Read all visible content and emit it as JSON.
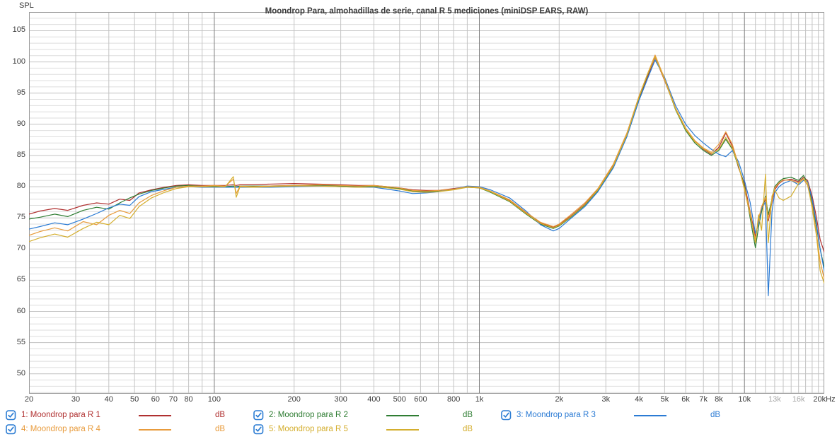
{
  "chart_data": {
    "type": "line",
    "title": "Moondrop Para, almohadillas de serie, canal R 5 mediciones (miniDSP EARS, RAW)",
    "ylabel": "SPL",
    "xlabel": "",
    "x_scale": "log",
    "xlim": [
      20,
      20000
    ],
    "ylim": [
      46.8,
      108
    ],
    "grid": true,
    "legend_position": "bottom",
    "y_ticks": [
      105,
      100,
      95,
      90,
      85,
      80,
      75,
      70,
      65,
      60,
      55,
      50
    ],
    "x_ticks": [
      {
        "label": "20",
        "f": 20,
        "muted": false
      },
      {
        "label": "30",
        "f": 30,
        "muted": false
      },
      {
        "label": "40",
        "f": 40,
        "muted": false
      },
      {
        "label": "50",
        "f": 50,
        "muted": false
      },
      {
        "label": "60",
        "f": 60,
        "muted": false
      },
      {
        "label": "70",
        "f": 70,
        "muted": false
      },
      {
        "label": "80",
        "f": 80,
        "muted": false
      },
      {
        "label": "100",
        "f": 100,
        "muted": false
      },
      {
        "label": "200",
        "f": 200,
        "muted": false
      },
      {
        "label": "300",
        "f": 300,
        "muted": false
      },
      {
        "label": "400",
        "f": 400,
        "muted": false
      },
      {
        "label": "500",
        "f": 500,
        "muted": false
      },
      {
        "label": "600",
        "f": 600,
        "muted": false
      },
      {
        "label": "800",
        "f": 800,
        "muted": false
      },
      {
        "label": "1k",
        "f": 1000,
        "muted": false
      },
      {
        "label": "2k",
        "f": 2000,
        "muted": false
      },
      {
        "label": "3k",
        "f": 3000,
        "muted": false
      },
      {
        "label": "4k",
        "f": 4000,
        "muted": false
      },
      {
        "label": "5k",
        "f": 5000,
        "muted": false
      },
      {
        "label": "6k",
        "f": 6000,
        "muted": false
      },
      {
        "label": "7k",
        "f": 7000,
        "muted": false
      },
      {
        "label": "8k",
        "f": 8000,
        "muted": false
      },
      {
        "label": "10k",
        "f": 10000,
        "muted": false
      },
      {
        "label": "13k",
        "f": 13000,
        "muted": true
      },
      {
        "label": "16k",
        "f": 16000,
        "muted": true
      },
      {
        "label": "20kHz",
        "f": 20000,
        "muted": false
      }
    ],
    "frequencies": [
      20,
      22,
      25,
      28,
      32,
      36,
      40,
      44,
      48,
      52,
      58,
      65,
      72,
      80,
      90,
      100,
      110,
      118,
      121,
      125,
      140,
      160,
      200,
      250,
      300,
      350,
      400,
      450,
      500,
      560,
      630,
      700,
      800,
      900,
      1000,
      1100,
      1300,
      1500,
      1700,
      1900,
      2000,
      2200,
      2500,
      2800,
      3200,
      3600,
      4000,
      4300,
      4600,
      5000,
      5500,
      6000,
      6500,
      7000,
      7500,
      8000,
      8500,
      9000,
      9500,
      10000,
      10500,
      11000,
      11300,
      11600,
      12000,
      12300,
      12700,
      13000,
      13500,
      14000,
      15000,
      16000,
      16700,
      17300,
      18000,
      18700,
      19300,
      20000
    ],
    "series": [
      {
        "name": "1: Moondrop para R 1",
        "color": "#b03030",
        "values": [
          75.6,
          76.1,
          76.5,
          76.2,
          77.0,
          77.4,
          77.2,
          78.0,
          77.8,
          79.0,
          79.5,
          79.9,
          80.2,
          80.3,
          80.2,
          80.2,
          80.2,
          80.3,
          80.2,
          80.3,
          80.3,
          80.4,
          80.5,
          80.4,
          80.3,
          80.2,
          80.2,
          80.0,
          79.8,
          79.5,
          79.4,
          79.4,
          79.7,
          80.0,
          79.8,
          79.2,
          77.8,
          75.8,
          74.2,
          73.5,
          73.9,
          75.2,
          77.2,
          79.6,
          83.5,
          88.5,
          94.0,
          97.5,
          100.7,
          97.0,
          92.5,
          89.3,
          87.3,
          86.0,
          85.2,
          86.3,
          88.6,
          86.5,
          83.0,
          80.5,
          76.0,
          72.0,
          74.5,
          76.5,
          78.0,
          74.5,
          77.5,
          79.5,
          80.5,
          81.0,
          81.2,
          80.8,
          81.5,
          81.0,
          78.5,
          75.0,
          71.5,
          69.5
        ]
      },
      {
        "name": "2: Moondrop para R 2",
        "color": "#2f7d33",
        "values": [
          74.8,
          75.1,
          75.6,
          75.2,
          76.2,
          76.7,
          76.4,
          77.4,
          78.2,
          78.8,
          79.4,
          79.8,
          80.1,
          80.2,
          80.1,
          80.1,
          80.0,
          80.1,
          80.0,
          80.1,
          80.1,
          80.1,
          80.2,
          80.2,
          80.1,
          80.0,
          80.1,
          79.9,
          79.7,
          79.3,
          79.2,
          79.3,
          79.6,
          79.9,
          79.8,
          79.1,
          77.6,
          75.6,
          74.0,
          73.3,
          73.7,
          75.0,
          77.0,
          79.4,
          83.2,
          88.2,
          94.2,
          97.8,
          100.9,
          97.2,
          92.3,
          89.0,
          87.0,
          85.8,
          85.0,
          85.8,
          87.6,
          86.0,
          83.2,
          80.2,
          75.0,
          70.2,
          73.5,
          76.0,
          78.5,
          75.5,
          78.0,
          80.0,
          80.8,
          81.3,
          81.5,
          81.0,
          81.8,
          80.5,
          77.5,
          73.5,
          70.0,
          67.0
        ]
      },
      {
        "name": "3: Moondrop para R 3",
        "color": "#2b7bd4",
        "values": [
          73.2,
          73.6,
          74.2,
          73.9,
          74.8,
          75.7,
          76.6,
          77.2,
          77.0,
          78.4,
          79.2,
          79.6,
          79.9,
          80.0,
          79.9,
          79.9,
          79.9,
          79.9,
          79.9,
          79.9,
          79.9,
          79.9,
          80.0,
          80.1,
          80.0,
          79.9,
          79.9,
          79.6,
          79.3,
          78.9,
          79.0,
          79.2,
          79.6,
          80.1,
          80.0,
          79.5,
          78.2,
          76.1,
          73.9,
          72.9,
          73.3,
          74.8,
          76.8,
          79.2,
          83.0,
          88.0,
          93.8,
          97.2,
          100.3,
          97.5,
          93.0,
          90.0,
          88.2,
          87.0,
          86.0,
          85.2,
          84.8,
          85.8,
          84.0,
          81.0,
          77.5,
          72.5,
          74.0,
          76.5,
          77.5,
          62.5,
          76.0,
          79.0,
          80.0,
          80.5,
          81.0,
          80.3,
          81.0,
          80.8,
          78.0,
          74.0,
          70.0,
          66.5
        ]
      },
      {
        "name": "4: Moondrop para R 4",
        "color": "#e89b3c",
        "values": [
          72.2,
          72.8,
          73.4,
          72.9,
          74.4,
          73.9,
          75.4,
          76.2,
          75.7,
          77.4,
          78.6,
          79.4,
          79.9,
          80.1,
          80.1,
          80.2,
          80.1,
          81.2,
          78.9,
          80.1,
          80.0,
          80.1,
          80.2,
          80.3,
          80.2,
          80.1,
          80.2,
          80.0,
          79.8,
          79.4,
          79.3,
          79.4,
          79.6,
          80.0,
          79.9,
          79.3,
          77.9,
          75.9,
          74.3,
          73.6,
          74.0,
          75.4,
          77.4,
          79.7,
          83.6,
          88.6,
          94.5,
          98.0,
          101.1,
          97.3,
          92.6,
          89.4,
          87.4,
          86.2,
          85.5,
          86.8,
          88.8,
          86.8,
          83.4,
          79.5,
          75.5,
          71.5,
          74.8,
          76.8,
          78.3,
          74.8,
          77.8,
          79.8,
          80.6,
          81.1,
          81.0,
          80.6,
          81.2,
          80.2,
          77.0,
          72.5,
          68.0,
          65.2
        ]
      },
      {
        "name": "5: Moondrop para R 5",
        "color": "#d4ae2e",
        "values": [
          71.2,
          71.8,
          72.4,
          71.9,
          73.3,
          74.3,
          73.9,
          75.4,
          74.9,
          76.8,
          78.2,
          79.1,
          79.7,
          80.0,
          80.0,
          80.0,
          80.0,
          81.6,
          78.3,
          80.0,
          79.9,
          80.0,
          80.1,
          80.1,
          80.0,
          79.9,
          80.0,
          79.8,
          79.6,
          79.2,
          79.1,
          79.2,
          79.5,
          79.9,
          79.8,
          79.2,
          77.7,
          75.7,
          74.1,
          73.4,
          73.8,
          75.1,
          77.1,
          79.5,
          83.3,
          88.3,
          94.3,
          97.9,
          100.8,
          97.1,
          92.4,
          89.2,
          87.2,
          86.1,
          85.3,
          86.0,
          87.9,
          86.2,
          83.3,
          79.8,
          75.8,
          71.0,
          75.5,
          73.0,
          82.0,
          71.0,
          78.5,
          79.5,
          78.2,
          77.8,
          78.5,
          80.5,
          81.3,
          80.6,
          76.5,
          72.0,
          66.5,
          64.5
        ]
      }
    ]
  },
  "legend": {
    "checkbox_color": "#2b7cd3",
    "unit_label": "dB",
    "items": [
      {
        "label": "1: Moondrop para R 1",
        "color": "#b03030",
        "checked": true
      },
      {
        "label": "2: Moondrop para R 2",
        "color": "#2f7d33",
        "checked": true
      },
      {
        "label": "3: Moondrop para R 3",
        "color": "#2b7bd4",
        "checked": true
      },
      {
        "label": "4: Moondrop para R 4",
        "color": "#e89b3c",
        "checked": true
      },
      {
        "label": "5: Moondrop para R 5",
        "color": "#d4ae2e",
        "checked": true
      }
    ]
  },
  "grid_colors": {
    "minor": "#dedede",
    "major": "#c3c3c3",
    "decade": "#7d7d7d",
    "border": "#9b9b9b"
  }
}
